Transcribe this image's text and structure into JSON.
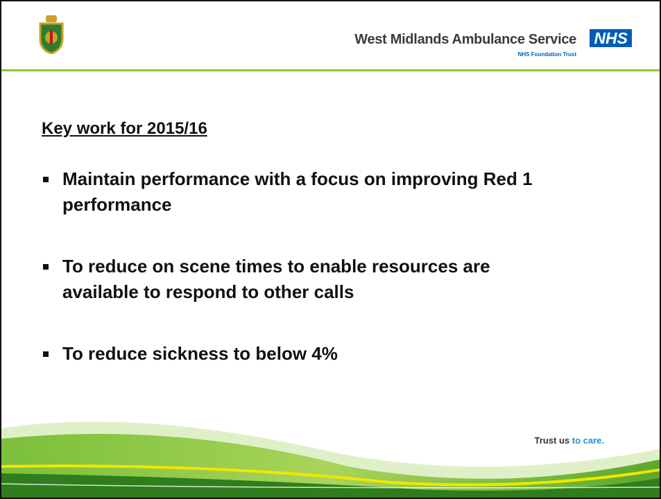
{
  "header": {
    "organization": "West Midlands Ambulance Service",
    "badge": "NHS",
    "subtitle": "NHS Foundation Trust"
  },
  "heading": "Key work for 2015/16",
  "bullets": [
    "Maintain performance with a focus on improving Red 1 performance",
    "To reduce on scene times to enable resources are available to respond to other calls",
    "To reduce sickness to below 4%"
  ],
  "footer": {
    "slogan_start": "Trust us",
    "slogan_end": "to care."
  }
}
